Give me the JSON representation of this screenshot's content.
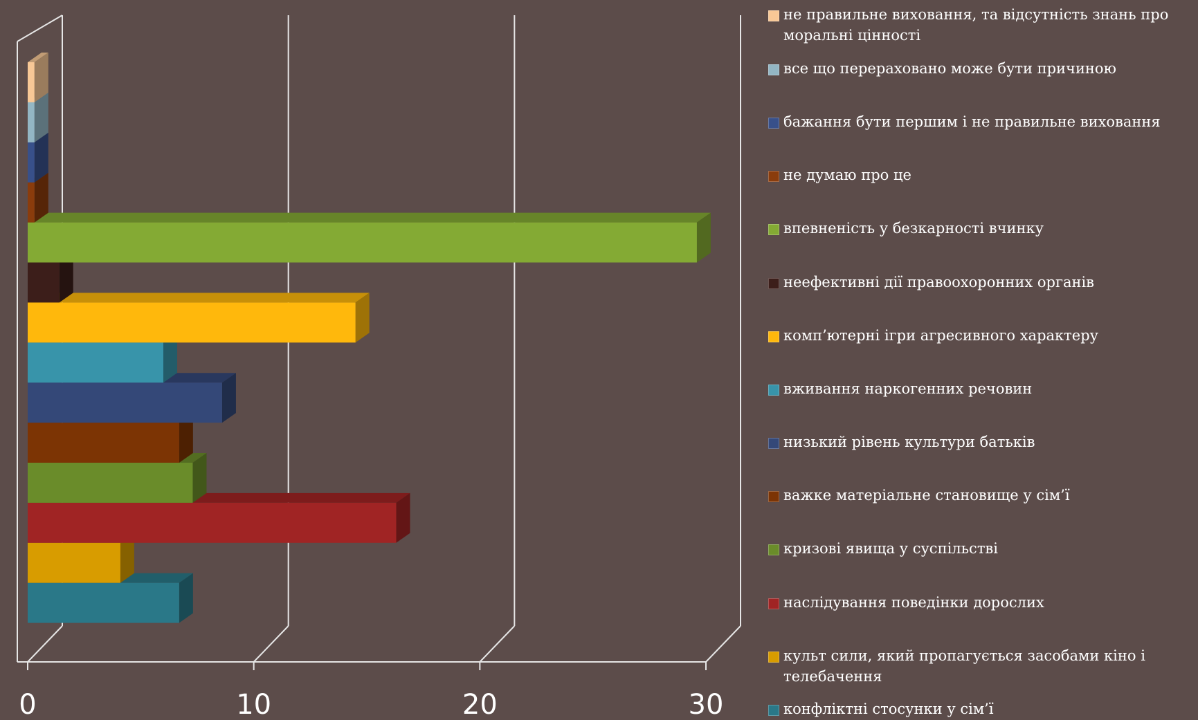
{
  "chart_data": {
    "type": "bar",
    "orientation": "horizontal",
    "style": "3d-clustered",
    "title": "",
    "xlabel": "",
    "ylabel": "",
    "xlim": [
      0,
      30
    ],
    "xticks": [
      0,
      10,
      20,
      30
    ],
    "xtick_labels": [
      "0",
      "10",
      "20",
      "30"
    ],
    "grid": true,
    "legend_position": "right",
    "series": [
      {
        "name": "не правильне виховання, та відсутність знань про моральні цінності",
        "value": 0.3,
        "color": "#f8c896"
      },
      {
        "name": "все що перераховано може бути причиною",
        "value": 0.3,
        "color": "#93b6c4"
      },
      {
        "name": "бажання бути першим і не правильне виховання",
        "value": 0.3,
        "color": "#38508a"
      },
      {
        "name": "не думаю про це",
        "value": 0.3,
        "color": "#8a3c0c"
      },
      {
        "name": "впевненість у безкарності вчинку",
        "value": 29.6,
        "color": "#84aa34"
      },
      {
        "name": "неефективні дії правоохоронних органів",
        "value": 1.4,
        "color": "#3c1e1a"
      },
      {
        "name": "комп’ютерні ігри агресивного характеру",
        "value": 14.5,
        "color": "#ffb80c"
      },
      {
        "name": "вживання наркогенних речовин",
        "value": 6.0,
        "color": "#3894aa"
      },
      {
        "name": "низький рівень культури батьків",
        "value": 8.6,
        "color": "#344878"
      },
      {
        "name": "важке матеріальне становище у сім’ї",
        "value": 6.7,
        "color": "#7c3404"
      },
      {
        "name": "кризові явища у суспільстві",
        "value": 7.3,
        "color": "#6a8c2a"
      },
      {
        "name": "наслідування поведінки дорослих",
        "value": 16.3,
        "color": "#a02424"
      },
      {
        "name": "культ сили, який пропагується засобами кіно і телебачення",
        "value": 4.1,
        "color": "#d89c00"
      },
      {
        "name": "конфліктні стосунки у сім’ї",
        "value": 6.7,
        "color": "#2a7888"
      }
    ]
  }
}
